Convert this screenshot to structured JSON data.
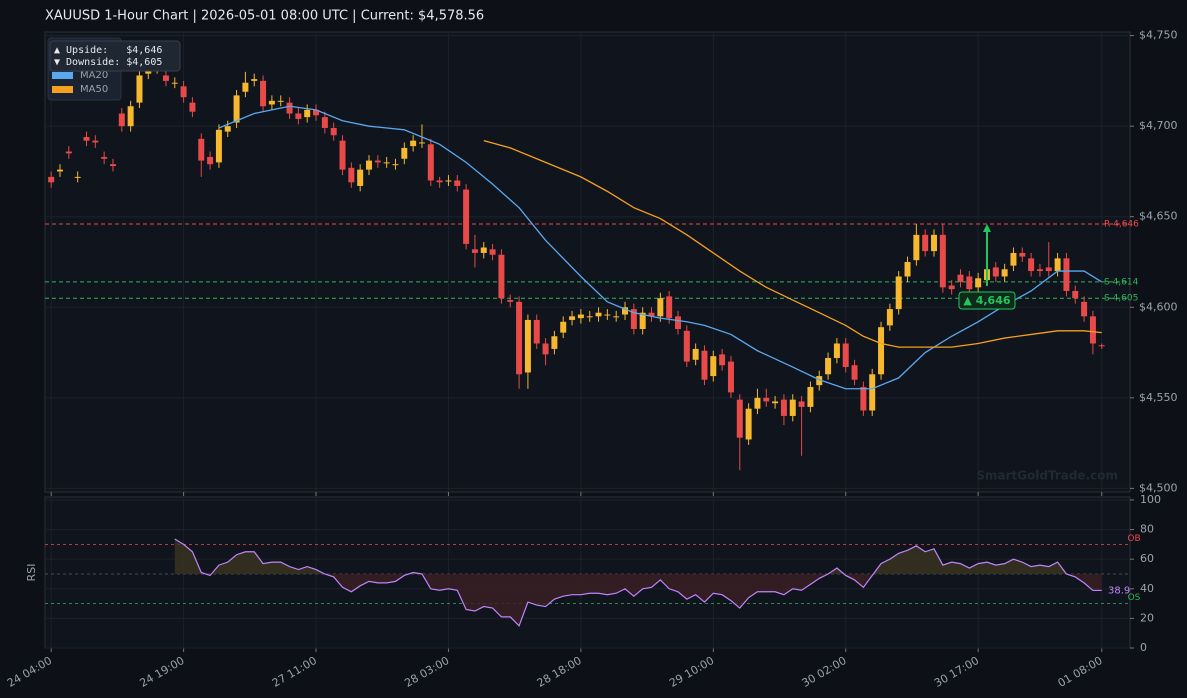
{
  "chart_data": [
    {
      "type": "candlestick",
      "title": "XAUUSD  1-Hour Chart  |  2026-05-01 08:00 UTC  |  Current: $4,578.56",
      "xlim": [
        -0.7,
        122.2
      ],
      "xticks": [
        {
          "value": 0,
          "label": "24 04:00"
        },
        {
          "value": 15,
          "label": "24 19:00"
        },
        {
          "value": 30,
          "label": "27 11:00"
        },
        {
          "value": 45,
          "label": "28 03:00"
        },
        {
          "value": 60,
          "label": "28 18:00"
        },
        {
          "value": 75,
          "label": "29 10:00"
        },
        {
          "value": 90,
          "label": "30 02:00"
        },
        {
          "value": 105,
          "label": "30 17:00"
        },
        {
          "value": 119,
          "label": "01 08:00"
        }
      ],
      "ylim": [
        4498,
        4752
      ],
      "yticks": [
        {
          "value": 4500,
          "label": "$4,500"
        },
        {
          "value": 4550,
          "label": "$4,550"
        },
        {
          "value": 4600,
          "label": "$4,600"
        },
        {
          "value": 4650,
          "label": "$4,650"
        },
        {
          "value": 4700,
          "label": "$4,700"
        },
        {
          "value": 4750,
          "label": "$4,750"
        }
      ],
      "grid": true,
      "up_color": "#f5b82e",
      "down_color": "#e84a4a",
      "open": [
        4672,
        4675,
        4686,
        4672,
        4694,
        4692,
        4683,
        4679,
        4707,
        4700,
        4713,
        4729,
        4731,
        4728,
        4724,
        4722,
        4713,
        4693,
        4683,
        4680,
        4697,
        4702,
        4719,
        4725,
        4725,
        4712,
        4714,
        4713,
        4707,
        4705,
        4709,
        4705,
        4699,
        4692,
        4677,
        4667,
        4676,
        4681,
        4680,
        4679,
        4682,
        4689,
        4691,
        4690,
        4670,
        4670,
        4670,
        4665,
        4632,
        4630,
        4632,
        4629,
        4604,
        4603,
        4564,
        4593,
        4580,
        4577,
        4586,
        4593,
        4594,
        4595,
        4595,
        4596,
        4595,
        4596,
        4599,
        4588,
        4597,
        4595,
        4606,
        4595,
        4587,
        4571,
        4576,
        4562,
        4574,
        4570,
        4549,
        4527,
        4544,
        4550,
        4547,
        4549,
        4540,
        4548,
        4545,
        4557,
        4563,
        4572,
        4580,
        4568,
        4556,
        4543,
        4563,
        4590,
        4599,
        4617,
        4626,
        4640,
        4631,
        4640,
        4612,
        4618,
        4617,
        4611,
        4615,
        4622,
        4617,
        4623,
        4630,
        4627,
        4621,
        4622,
        4620,
        4627,
        4609,
        4603,
        4595,
        4579
      ],
      "high": [
        4675,
        4679,
        4689,
        4675,
        4697,
        4695,
        4686,
        4682,
        4710,
        4714,
        4735,
        4734,
        4736,
        4731,
        4727,
        4725,
        4716,
        4696,
        4686,
        4701,
        4703,
        4720,
        4730,
        4729,
        4728,
        4717,
        4717,
        4716,
        4710,
        4712,
        4712,
        4708,
        4702,
        4695,
        4680,
        4679,
        4684,
        4684,
        4683,
        4682,
        4691,
        4695,
        4701,
        4693,
        4672,
        4673,
        4673,
        4668,
        4640,
        4636,
        4635,
        4632,
        4607,
        4606,
        4596,
        4596,
        4583,
        4587,
        4595,
        4598,
        4599,
        4598,
        4600,
        4599,
        4598,
        4603,
        4602,
        4600,
        4600,
        4608,
        4609,
        4598,
        4590,
        4580,
        4579,
        4576,
        4577,
        4573,
        4552,
        4547,
        4555,
        4555,
        4551,
        4552,
        4552,
        4551,
        4559,
        4565,
        4575,
        4583,
        4583,
        4571,
        4559,
        4566,
        4592,
        4602,
        4620,
        4628,
        4646,
        4643,
        4643,
        4646,
        4615,
        4621,
        4620,
        4619,
        4624,
        4625,
        4624,
        4633,
        4633,
        4630,
        4624,
        4636,
        4630,
        4630,
        4612,
        4606,
        4598,
        4580
      ],
      "low": [
        4666,
        4672,
        4682,
        4669,
        4689,
        4688,
        4679,
        4675,
        4697,
        4697,
        4710,
        4726,
        4729,
        4722,
        4721,
        4713,
        4705,
        4672,
        4676,
        4677,
        4694,
        4699,
        4716,
        4722,
        4708,
        4709,
        4711,
        4704,
        4701,
        4702,
        4703,
        4696,
        4692,
        4673,
        4666,
        4664,
        4673,
        4677,
        4677,
        4676,
        4679,
        4686,
        4688,
        4667,
        4666,
        4667,
        4664,
        4632,
        4622,
        4627,
        4626,
        4602,
        4600,
        4555,
        4555,
        4577,
        4568,
        4574,
        4583,
        4590,
        4591,
        4592,
        4592,
        4593,
        4592,
        4593,
        4585,
        4585,
        4592,
        4592,
        4591,
        4585,
        4567,
        4568,
        4557,
        4559,
        4565,
        4550,
        4510,
        4524,
        4541,
        4545,
        4544,
        4535,
        4537,
        4518,
        4542,
        4554,
        4560,
        4569,
        4564,
        4557,
        4540,
        4540,
        4560,
        4587,
        4596,
        4614,
        4623,
        4628,
        4628,
        4608,
        4607,
        4611,
        4607,
        4608,
        4612,
        4614,
        4614,
        4620,
        4625,
        4617,
        4617,
        4617,
        4617,
        4606,
        4602,
        4592,
        4574,
        4577
      ],
      "close": [
        4669,
        4676,
        4685,
        4672,
        4692,
        4691,
        4682,
        4678,
        4700,
        4711,
        4728,
        4731,
        4732,
        4725,
        4724,
        4716,
        4708,
        4681,
        4679,
        4698,
        4700,
        4717,
        4724,
        4726,
        4711,
        4714,
        4714,
        4707,
        4704,
        4709,
        4706,
        4699,
        4695,
        4676,
        4669,
        4676,
        4681,
        4680,
        4680,
        4679,
        4688,
        4692,
        4691,
        4670,
        4669,
        4670,
        4667,
        4635,
        4630,
        4633,
        4629,
        4605,
        4603,
        4563,
        4593,
        4580,
        4574,
        4584,
        4592,
        4595,
        4596,
        4595,
        4597,
        4596,
        4595,
        4600,
        4588,
        4597,
        4595,
        4605,
        4594,
        4588,
        4570,
        4577,
        4560,
        4573,
        4568,
        4553,
        4528,
        4544,
        4550,
        4548,
        4548,
        4540,
        4549,
        4545,
        4556,
        4562,
        4572,
        4580,
        4567,
        4560,
        4543,
        4563,
        4589,
        4599,
        4617,
        4625,
        4640,
        4631,
        4640,
        4611,
        4610,
        4614,
        4610,
        4616,
        4621,
        4617,
        4621,
        4630,
        4628,
        4620,
        4620,
        4620,
        4627,
        4609,
        4605,
        4595,
        4580,
        4578.56
      ],
      "series": [
        {
          "name": "MA20",
          "color": "#5aa9f0",
          "x": [
            19,
            23,
            27,
            30,
            33,
            36,
            40,
            44,
            47,
            50,
            53,
            56,
            60,
            63,
            66,
            69,
            72,
            74,
            77,
            80,
            84,
            87,
            90,
            93,
            96,
            99,
            102,
            105,
            108,
            111,
            114,
            117,
            119
          ],
          "values": [
            4699,
            4707,
            4711,
            4709,
            4703,
            4700,
            4698,
            4690,
            4680,
            4668,
            4655,
            4637,
            4617,
            4603,
            4597,
            4594,
            4592,
            4590,
            4585,
            4576,
            4567,
            4560,
            4555,
            4555,
            4561,
            4575,
            4584,
            4592,
            4601,
            4609,
            4620,
            4620,
            4614
          ]
        },
        {
          "name": "MA50",
          "color": "#f5a020",
          "x": [
            49,
            52,
            56,
            60,
            63,
            66,
            69,
            72,
            75,
            78,
            81,
            84,
            87,
            90,
            92,
            94,
            96,
            99,
            102,
            105,
            108,
            111,
            114,
            117,
            119
          ],
          "values": [
            4692,
            4688,
            4680,
            4672,
            4664,
            4655,
            4649,
            4640,
            4630,
            4620,
            4611,
            4604,
            4597,
            4590,
            4584,
            4580,
            4578,
            4578,
            4578,
            4580,
            4583,
            4585,
            4587,
            4587,
            4586
          ]
        }
      ],
      "levels": [
        {
          "label": "R 4,646",
          "value": 4646,
          "color": "#e84a4a"
        },
        {
          "label": "S 4,614",
          "value": 4614,
          "color": "#2fb35a"
        },
        {
          "label": "S 4,605",
          "value": 4605,
          "color": "#2fb35a"
        }
      ],
      "annotation": {
        "text": "▲ 4,646",
        "value": 4646,
        "color": "#22c55e"
      },
      "info": [
        "▲ Upside:   $4,646",
        "▼ Downside: $4,605"
      ],
      "watermark": "SmartGoldTrade.com"
    },
    {
      "type": "line",
      "ylabel": "RSI",
      "ylim": [
        0,
        102
      ],
      "yticks": [
        0,
        20,
        40,
        60,
        80,
        100
      ],
      "color": "#c084fc",
      "levels": [
        {
          "label": "OB",
          "value": 70,
          "color": "#e84a4a"
        },
        {
          "value": 50,
          "color": "#555c66"
        },
        {
          "label": "OS",
          "value": 30,
          "color": "#2fb35a"
        }
      ],
      "values": [
        null,
        null,
        null,
        null,
        null,
        null,
        null,
        null,
        null,
        null,
        null,
        null,
        null,
        null,
        73.6,
        70,
        65,
        51,
        49,
        56,
        58,
        63,
        65,
        65,
        57,
        58,
        58,
        55,
        53,
        55,
        53,
        50,
        48,
        41,
        38,
        42,
        45,
        44,
        44,
        45,
        49,
        51,
        50,
        40,
        39,
        40,
        39,
        26,
        25,
        28,
        27,
        21,
        21,
        15,
        31,
        29,
        28,
        33,
        35,
        36,
        36,
        37,
        37,
        36,
        37,
        40,
        35,
        40,
        41,
        46,
        40,
        38,
        33,
        36,
        31,
        37,
        36,
        32,
        27,
        34,
        38,
        38,
        38,
        36,
        40,
        39,
        43,
        47,
        50,
        54,
        49,
        46,
        41,
        49,
        57,
        60,
        64,
        66,
        69,
        65,
        67,
        56,
        58,
        57,
        54,
        57,
        58,
        56,
        57,
        60,
        58,
        55,
        56,
        55,
        58,
        50,
        48,
        44,
        38.9,
        38.9
      ]
    }
  ]
}
